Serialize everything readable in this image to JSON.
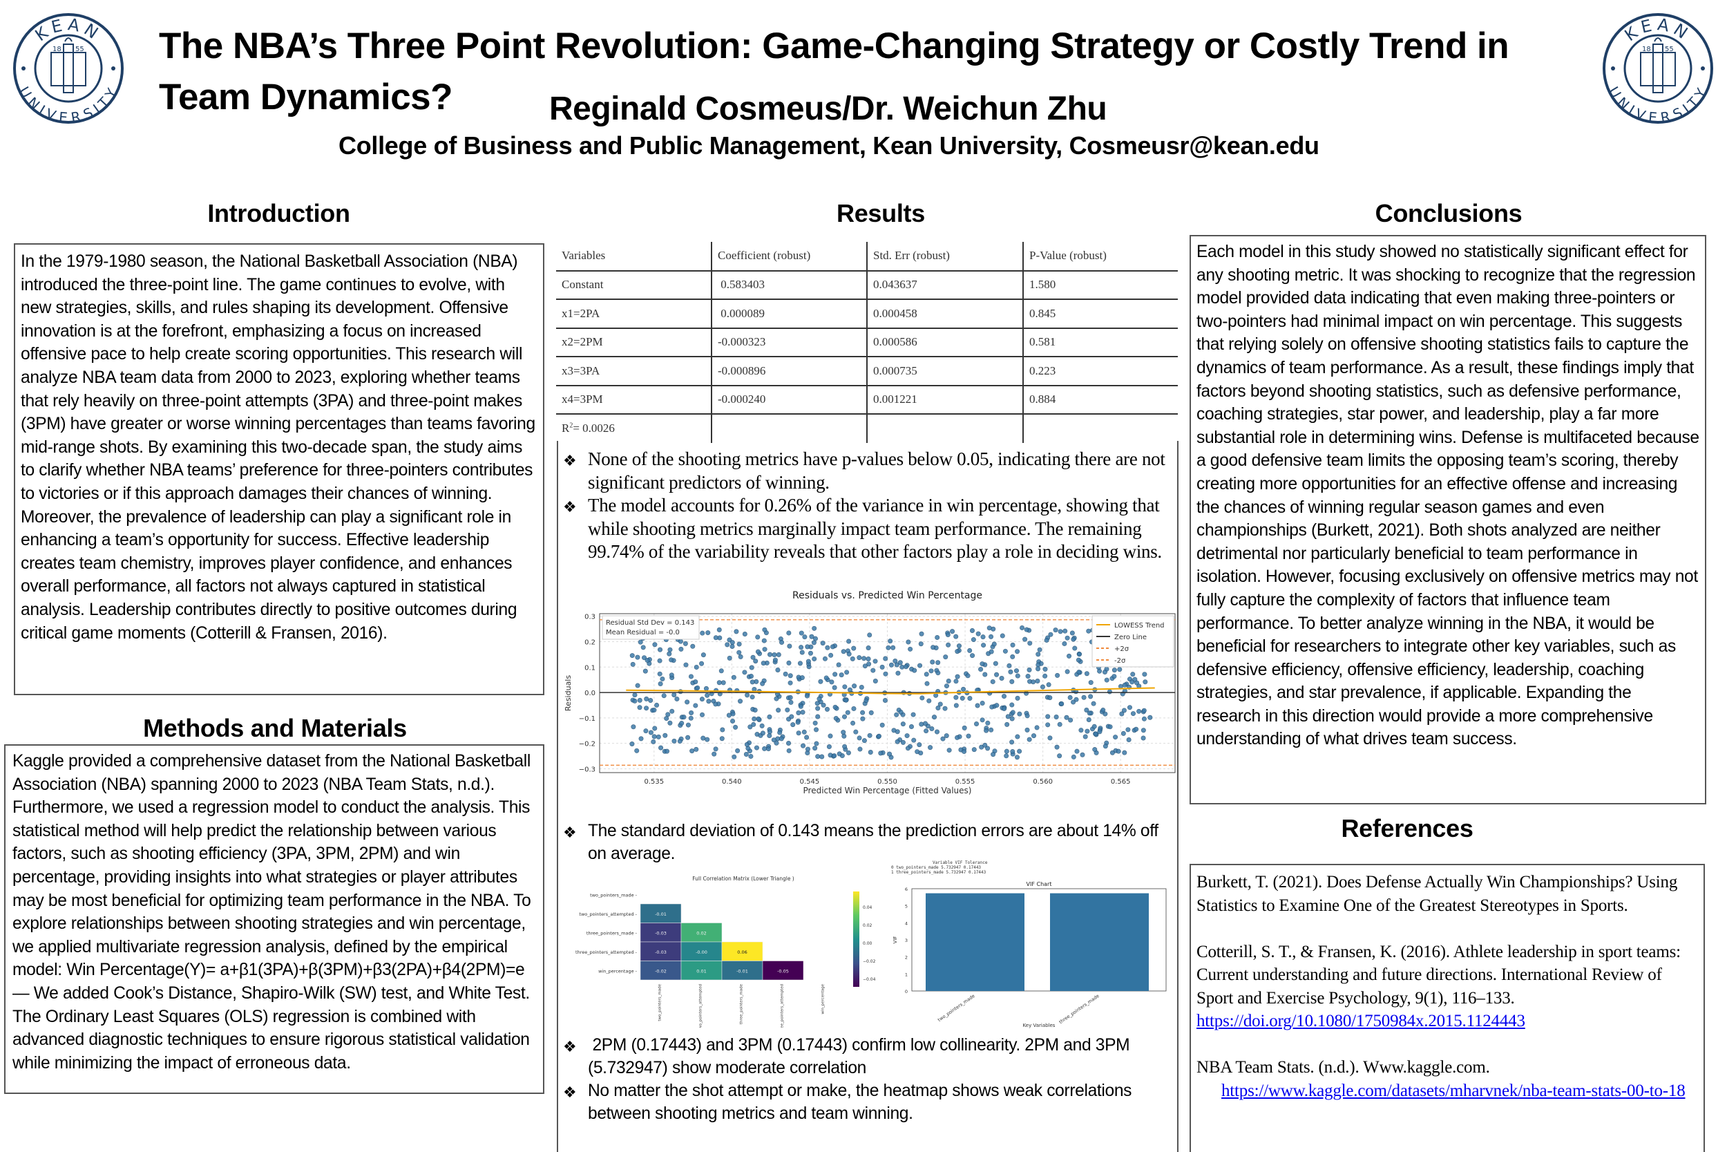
{
  "header": {
    "title_line1": "The NBA’s Three Point Revolution: Game-Changing Strategy or Costly Trend in",
    "title_line2": "Team Dynamics?",
    "authors": "Reginald Cosmeus/Dr. Weichun Zhu",
    "affiliation": "College of Business and Public Management, Kean University, Cosmeusr@kean.edu",
    "logo": {
      "top_text": "KEAN",
      "bottom_text": "UNIVERSITY",
      "year_left": "18",
      "year_right": "55",
      "color": "#1f3f66"
    }
  },
  "introduction": {
    "heading": "Introduction",
    "body": "In the 1979-1980 season, the National Basketball Association (NBA) introduced the three-point line. The game continues to evolve, with new strategies, skills, and rules shaping its development. Offensive innovation is at the forefront, emphasizing a focus on increased offensive pace to help create scoring opportunities. This research will analyze NBA team data from 2000 to 2023, exploring whether teams that rely heavily on three-point attempts (3PA) and three-point makes (3PM) have greater or worse winning percentages than teams favoring mid-range shots. By examining this two-decade span, the study aims to clarify whether NBA teams’ preference for three-pointers contributes to victories or if this approach damages their chances of winning. Moreover, the prevalence of leadership can play a significant role in enhancing a team’s opportunity for success. Effective leadership creates team chemistry, improves player confidence, and enhances overall performance, all factors not always captured in statistical analysis. Leadership contributes directly to positive outcomes during critical game moments (Cotterill & Fransen, 2016)."
  },
  "methods": {
    "heading": "Methods and Materials",
    "body": "Kaggle provided a comprehensive dataset from the National Basketball Association (NBA) spanning 2000 to 2023 (NBA Team Stats, n.d.). Furthermore, we used a regression model to conduct the analysis. This statistical method will help predict the relationship between various factors, such as shooting efficiency (3PA, 3PM, 2PM) and win percentage, providing insights into what strategies or player attributes may be most beneficial for optimizing team performance in the NBA. To explore relationships between shooting strategies and win percentage, we applied multivariate regression analysis, defined by the empirical model: Win Percentage(Y)= a+β1(3PA)+β(3PM)+β3(2PA)+β4(2PM)=e— We added Cook’s Distance, Shapiro-Wilk (SW) test, and White Test. The Ordinary Least Squares (OLS) regression is combined with advanced diagnostic techniques to ensure rigorous statistical validation while minimizing the impact of erroneous data."
  },
  "results": {
    "heading": "Results",
    "table": {
      "headers": [
        "Variables",
        "Coefficient (robust)",
        "Std. Err (robust)",
        "P-Value (robust)"
      ],
      "rows": [
        [
          "Constant",
          " 0.583403",
          "0.043637",
          "1.580"
        ],
        [
          "x1=2PA",
          " 0.000089",
          "0.000458",
          "0.845"
        ],
        [
          "x2=2PM",
          "-0.000323",
          "0.000586",
          "0.581"
        ],
        [
          "x3=3PA",
          "-0.000896",
          "0.000735",
          "0.223"
        ],
        [
          "x4=3PM",
          "-0.000240",
          "0.001221",
          "0.884"
        ]
      ],
      "r_squared_label": "R",
      "r_squared_sup": "2",
      "r_squared_value": "= 0.0026"
    },
    "bullets_top": [
      "None of the shooting metrics have p-values below 0.05, indicating there are not significant predictors of winning.",
      "The model accounts for 0.26% of the variance in win percentage, showing that while shooting metrics marginally impact team performance. The remaining 99.74% of the variability reveals that other factors play a role in deciding wins."
    ],
    "bullet_mid": "The standard deviation of 0.143 means the prediction errors are about 14% off on average.",
    "bullets_bottom": [
      " 2PM (0.17443) and 3PM (0.17443) confirm low collinearity. 2PM and 3PM (5.732947) show moderate correlation",
      "No matter the shot attempt or make, the heatmap shows weak correlations between shooting metrics and team winning."
    ],
    "bullet_glyph": "❖"
  },
  "conclusions": {
    "heading": "Conclusions",
    "body": "Each model in this study showed no statistically significant effect for any shooting metric. It was shocking to recognize that the regression model provided data indicating that even making three-pointers or two-pointers had minimal impact on win percentage. This suggests that relying solely on offensive shooting statistics fails to capture the dynamics of team performance. As a result, these findings imply that factors beyond shooting statistics, such as defensive performance, coaching strategies, star power, and leadership, play a far more substantial role in determining wins. Defense is multifaceted because a good defensive team limits the opposing team’s scoring, thereby creating more opportunities for an effective offense and increasing the chances of winning regular season games and even championships (Burkett, 2021). Both shots analyzed are neither detrimental nor particularly beneficial to team performance in isolation. However, focusing exclusively on offensive metrics may not fully capture the complexity of factors that influence team performance. To better analyze winning in the NBA, it would be beneficial for researchers to integrate other key variables, such as defensive efficiency, offensive efficiency, leadership, coaching strategies, and star prevalence, if applicable. Expanding the research in this direction would provide a more comprehensive understanding of what drives team success."
  },
  "references": {
    "heading": "References",
    "items": [
      {
        "text": "Burkett, T. (2021). Does Defense Actually Win Championships? Using Statistics to Examine One of the Greatest Stereotypes in Sports.",
        "link": ""
      },
      {
        "text": "Cotterill, S. T., & Fransen, K. (2016). Athlete leadership in sport teams: Current understanding and future directions. International Review of Sport and Exercise Psychology, 9(1), 116–133. ",
        "link": "https://doi.org/10.1080/1750984x.2015.1124443"
      },
      {
        "text": "NBA Team Stats. (n.d.). Www.kaggle.com.",
        "link": "https://www.kaggle.com/datasets/mharvnek/nba-team-stats-00-to-18"
      }
    ]
  },
  "chart_data": [
    {
      "type": "scatter",
      "title": "Residuals vs. Predicted Win Percentage",
      "xlabel": "Predicted Win Percentage (Fitted Values)",
      "ylabel": "Residuals",
      "xlim": [
        0.5315,
        0.5685
      ],
      "ylim": [
        -0.315,
        0.31
      ],
      "xticks": [
        "0.535",
        "0.540",
        "0.545",
        "0.550",
        "0.555",
        "0.560",
        "0.565"
      ],
      "yticks": [
        "0.3",
        "0.2",
        "0.1",
        "0.0",
        "-0.1",
        "-0.2",
        "-0.3"
      ],
      "grid": true,
      "annotation": [
        "Residual Std Dev = 0.143",
        "Mean Residual = -0.0"
      ],
      "legend": [
        "LOWESS Trend",
        "Zero Line",
        "+2σ",
        "-2σ"
      ],
      "legend_position": "upper right",
      "reference_lines": {
        "zero": 0.0,
        "plus_2sigma": 0.286,
        "minus_2sigma": -0.286
      },
      "lowess": {
        "x": [
          0.5332,
          0.54,
          0.545,
          0.55,
          0.552,
          0.555,
          0.56,
          0.5672
        ],
        "y": [
          0.009,
          0.005,
          0.001,
          -0.004,
          -0.005,
          0.001,
          0.008,
          0.018
        ]
      },
      "colors": {
        "points": "#3d7aa8",
        "lowess": "#f0a500",
        "zero": "#333333",
        "sigma": "#f08a3c"
      },
      "n_points_approx": 700
    },
    {
      "type": "heatmap",
      "title": "Full Correlation Matrix (Lower Triangle )",
      "labels": [
        "two_pointers_made",
        "two_pointers_attempted",
        "three_pointers_made",
        "three_pointers_attempted",
        "win_percentage"
      ],
      "cells": [
        {
          "row": "two_pointers_attempted",
          "col": "two_pointers_made",
          "value": -0.01
        },
        {
          "row": "three_pointers_made",
          "col": "two_pointers_made",
          "value": -0.03
        },
        {
          "row": "three_pointers_made",
          "col": "two_pointers_attempted",
          "value": 0.02
        },
        {
          "row": "three_pointers_attempted",
          "col": "two_pointers_made",
          "value": -0.03
        },
        {
          "row": "three_pointers_attempted",
          "col": "two_pointers_attempted",
          "value": -0.0
        },
        {
          "row": "three_pointers_attempted",
          "col": "three_pointers_made",
          "value": 0.06
        },
        {
          "row": "win_percentage",
          "col": "two_pointers_made",
          "value": -0.02
        },
        {
          "row": "win_percentage",
          "col": "two_pointers_attempted",
          "value": 0.01
        },
        {
          "row": "win_percentage",
          "col": "three_pointers_made",
          "value": -0.01
        },
        {
          "row": "win_percentage",
          "col": "three_pointers_attempted",
          "value": -0.05
        }
      ],
      "display_values": [
        [
          "-0.01"
        ],
        [
          "-0.03",
          "0.02"
        ],
        [
          "-0.03",
          "-0.00",
          "0.06"
        ],
        [
          "-0.02",
          "0.01",
          "-0.01",
          "-0.05"
        ]
      ],
      "colorbar_ticks": [
        "0.04",
        "0.02",
        "0.00",
        "−0.02",
        "−0.04"
      ],
      "colormap": "viridis"
    },
    {
      "type": "bar",
      "title": "VIF Chart",
      "categories": [
        "two_pointers_made",
        "three_pointers_made"
      ],
      "values": [
        5.732947,
        5.732947
      ],
      "xlabel": "Key Variables",
      "ylabel": "VIF",
      "ylim": [
        0,
        6
      ],
      "yticks": [
        "0",
        "1",
        "2",
        "3",
        "4",
        "5",
        "6"
      ],
      "bar_color": "#3274a1",
      "table": {
        "headers": [
          "Variable",
          "VIF",
          "Tolerance"
        ],
        "rows": [
          [
            "0",
            "two_pointers_made",
            "5.732947",
            "0.17443"
          ],
          [
            "1",
            "three_pointers_made",
            "5.732947",
            "0.17443"
          ]
        ]
      }
    }
  ]
}
